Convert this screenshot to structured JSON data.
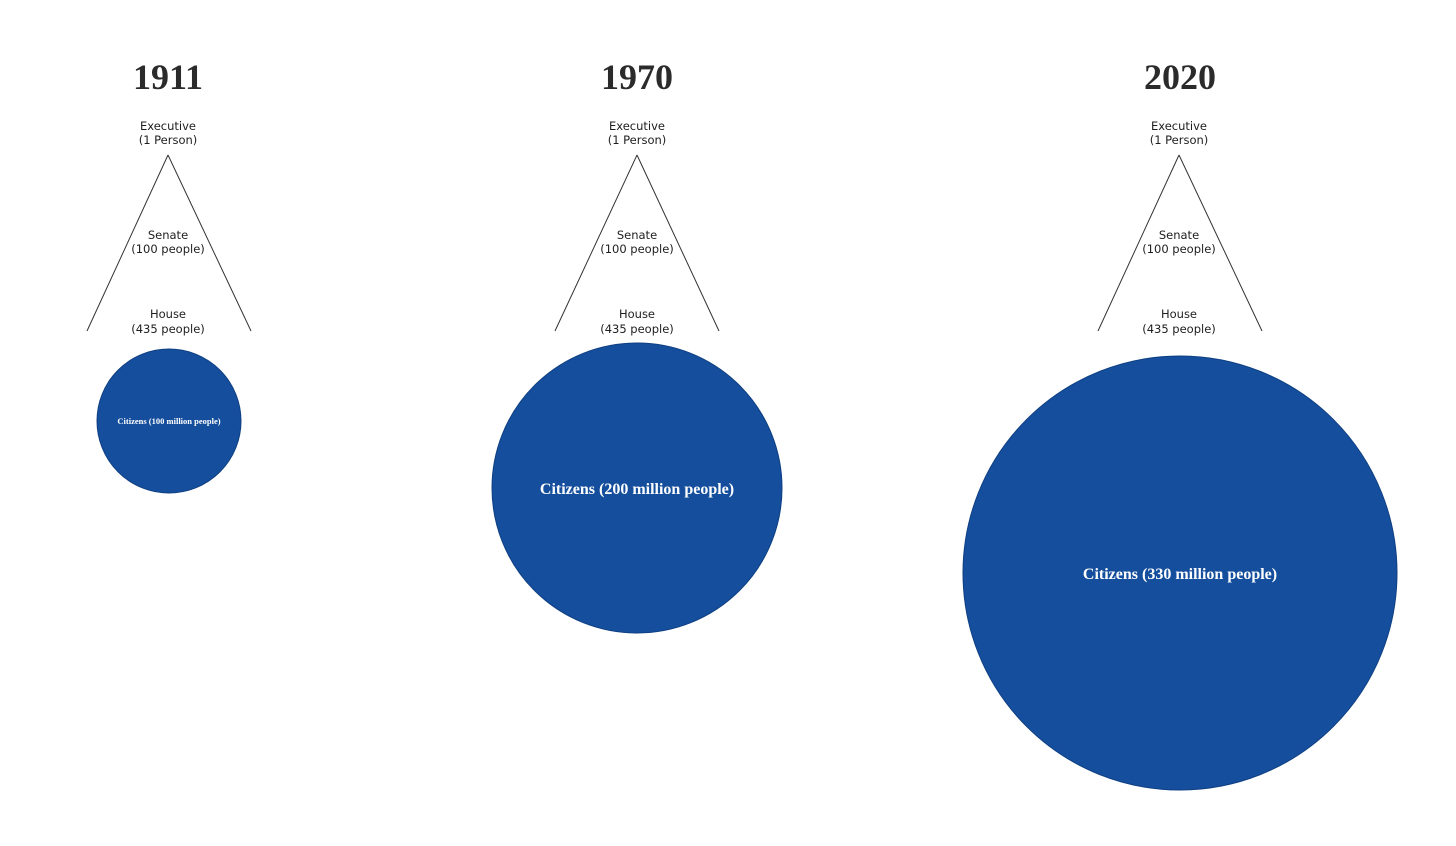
{
  "colors": {
    "citizens_fill": "#154e9c",
    "line": "#333333",
    "title_text": "#2b2b2b"
  },
  "panels": [
    {
      "year": "1911",
      "executive": {
        "name": "Executive",
        "count": "(1 Person)"
      },
      "senate": {
        "name": "Senate",
        "count": "(100 people)"
      },
      "house": {
        "name": "House",
        "count": "(435 people)"
      },
      "citizens": {
        "label": "Citizens (100 million people)",
        "population_millions": 100
      }
    },
    {
      "year": "1970",
      "executive": {
        "name": "Executive",
        "count": "(1 Person)"
      },
      "senate": {
        "name": "Senate",
        "count": "(100 people)"
      },
      "house": {
        "name": "House",
        "count": "(435 people)"
      },
      "citizens": {
        "label": "Citizens (200 million people)",
        "population_millions": 200
      }
    },
    {
      "year": "2020",
      "executive": {
        "name": "Executive",
        "count": "(1 Person)"
      },
      "senate": {
        "name": "Senate",
        "count": "(100 people)"
      },
      "house": {
        "name": "House",
        "count": "(435 people)"
      },
      "citizens": {
        "label": "Citizens (330 million people)",
        "population_millions": 330
      }
    }
  ]
}
